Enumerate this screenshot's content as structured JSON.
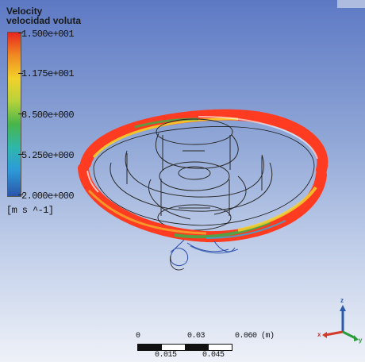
{
  "legend": {
    "title_line1": "Velocity",
    "title_line2": "velocidad voluta",
    "ticks": [
      "1.500e+001",
      "1.175e+001",
      "8.500e+000",
      "5.250e+000",
      "2.000e+000"
    ],
    "units": "[m s ^-1]",
    "colors": [
      "#e8251f",
      "#f08a22",
      "#f3d12b",
      "#b7d23b",
      "#48b54a",
      "#2fb7a9",
      "#2c9bd9",
      "#2b55a8"
    ]
  },
  "scale_bar": {
    "top_labels": [
      "0",
      "0.03",
      "0.060 (m)"
    ],
    "bottom_labels": [
      "0.015",
      "0.045"
    ]
  },
  "axis_triad": {
    "z_label": "z",
    "x_label": "x",
    "y_label": "y",
    "x_color": "#d23a2a",
    "y_color": "#2a9a3a",
    "z_color": "#2a5aa8"
  }
}
